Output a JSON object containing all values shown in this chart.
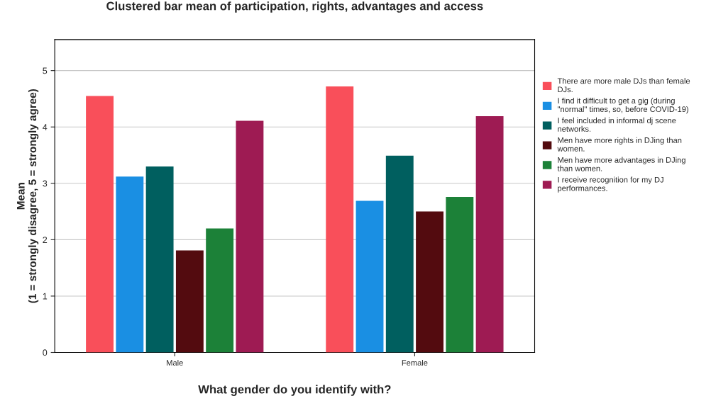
{
  "chart_data": {
    "type": "bar",
    "title": "Clustered bar mean of participation, rights, advantages and access",
    "xlabel": "What gender do you identify with?",
    "ylabel": "Mean\n(1 = strongly disagree, 5 = strongly agree)",
    "categories": [
      "Male",
      "Female"
    ],
    "series": [
      {
        "name": "There are more male DJs than female\nDJs.",
        "color": "#f94f5a",
        "values": [
          4.55,
          4.72
        ]
      },
      {
        "name": "I find it difficult to get a gig (during\n\"normal\" times, so, before COVID-19)",
        "color": "#1a8fe3",
        "values": [
          3.12,
          2.69
        ]
      },
      {
        "name": "I feel included in informal dj scene\nnetworks.",
        "color": "#005f5f",
        "values": [
          3.3,
          3.49
        ]
      },
      {
        "name": "Men have more rights in DJing than\nwomen.",
        "color": "#530b0f",
        "values": [
          1.81,
          2.5
        ]
      },
      {
        "name": "Men have more advantages in DJing\nthan women.",
        "color": "#1c8138",
        "values": [
          2.2,
          2.76
        ]
      },
      {
        "name": "I receive recognition for my DJ\nperformances.",
        "color": "#9e1b53",
        "values": [
          4.11,
          4.19
        ]
      }
    ],
    "ylim": [
      0,
      5.55
    ],
    "yticks": [
      0,
      1,
      2,
      3,
      4,
      5
    ],
    "grid": "y",
    "legend": "right"
  }
}
